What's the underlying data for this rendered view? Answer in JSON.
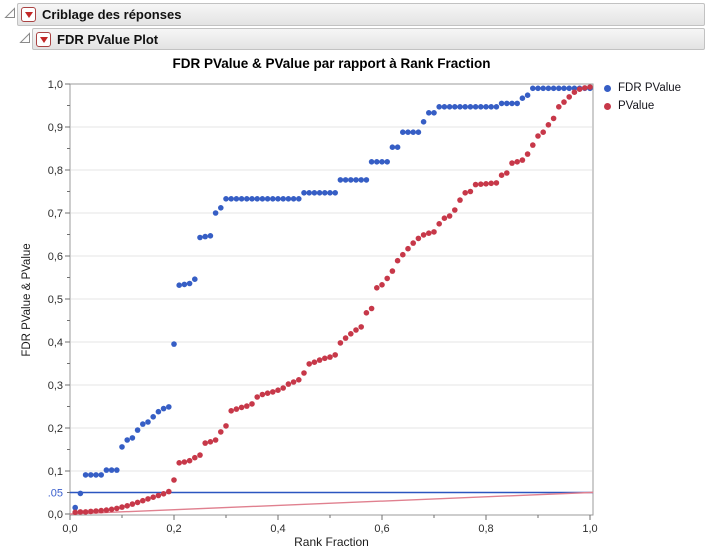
{
  "outline": {
    "level1_title": "Criblage des réponses",
    "level2_title": "FDR PValue Plot"
  },
  "chart": {
    "title": "FDR PValue & PValue par rapport à Rank Fraction",
    "x_axis": {
      "title": "Rank Fraction",
      "tick_labels": [
        "0,0",
        "0,2",
        "0,4",
        "0,6",
        "0,8",
        "1,0"
      ],
      "tick_values": [
        0,
        0.2,
        0.4,
        0.6,
        0.8,
        1.0
      ],
      "minor_tick_values": [
        0.1,
        0.3,
        0.5,
        0.7,
        0.9
      ]
    },
    "y_axis": {
      "title": "FDR PValue & PValue",
      "tick_labels": [
        "0,0",
        "0,1",
        "0,2",
        "0,3",
        "0,4",
        "0,5",
        "0,6",
        "0,7",
        "0,8",
        "0,9",
        "1,0"
      ],
      "tick_values": [
        0,
        0.1,
        0.2,
        0.3,
        0.4,
        0.5,
        0.6,
        0.7,
        0.8,
        0.9,
        1.0
      ],
      "minor_tick_values": [
        0.05,
        0.15,
        0.25,
        0.35,
        0.45,
        0.55,
        0.65,
        0.75,
        0.85,
        0.95
      ],
      "special_tick": {
        "label": ".05",
        "value": 0.05,
        "color": "#3a5fcd"
      }
    },
    "legend": [
      {
        "label": "FDR PValue",
        "color": "#365ec5"
      },
      {
        "label": "PValue",
        "color": "#c73849"
      }
    ]
  },
  "chart_data": {
    "type": "scatter",
    "title": "FDR PValue & PValue par rapport à Rank Fraction",
    "xlabel": "Rank Fraction",
    "ylabel": "FDR PValue & PValue",
    "xlim": [
      0,
      1.006
    ],
    "ylim": [
      0,
      1.0
    ],
    "grid": "horizontal-only",
    "legend_position": "right-top",
    "x": [
      0.01,
      0.02,
      0.03,
      0.04,
      0.05,
      0.06,
      0.07,
      0.08,
      0.09,
      0.1,
      0.11,
      0.12,
      0.13,
      0.14,
      0.15,
      0.16,
      0.17,
      0.18,
      0.19,
      0.2,
      0.21,
      0.22,
      0.23,
      0.24,
      0.25,
      0.26,
      0.27,
      0.28,
      0.29,
      0.3,
      0.31,
      0.32,
      0.33,
      0.34,
      0.35,
      0.36,
      0.37,
      0.38,
      0.39,
      0.4,
      0.41,
      0.42,
      0.43,
      0.44,
      0.45,
      0.46,
      0.47,
      0.48,
      0.49,
      0.5,
      0.51,
      0.52,
      0.53,
      0.54,
      0.55,
      0.56,
      0.57,
      0.58,
      0.59,
      0.6,
      0.61,
      0.62,
      0.63,
      0.64,
      0.65,
      0.66,
      0.67,
      0.68,
      0.69,
      0.7,
      0.71,
      0.72,
      0.73,
      0.74,
      0.75,
      0.76,
      0.77,
      0.78,
      0.79,
      0.8,
      0.81,
      0.82,
      0.83,
      0.84,
      0.85,
      0.86,
      0.87,
      0.88,
      0.89,
      0.9,
      0.91,
      0.92,
      0.93,
      0.94,
      0.95,
      0.96,
      0.97,
      0.98,
      0.99,
      1.0
    ],
    "series": [
      {
        "name": "FDR PValue",
        "color": "#365ec5",
        "values": [
          0.015,
          0.048,
          0.091,
          0.091,
          0.091,
          0.091,
          0.102,
          0.102,
          0.102,
          0.156,
          0.172,
          0.177,
          0.195,
          0.209,
          0.214,
          0.226,
          0.238,
          0.245,
          0.249,
          0.395,
          0.532,
          0.534,
          0.536,
          0.546,
          0.643,
          0.645,
          0.647,
          0.7,
          0.712,
          0.733,
          0.733,
          0.733,
          0.733,
          0.733,
          0.733,
          0.733,
          0.733,
          0.733,
          0.733,
          0.733,
          0.733,
          0.733,
          0.733,
          0.733,
          0.747,
          0.747,
          0.747,
          0.747,
          0.747,
          0.747,
          0.747,
          0.777,
          0.777,
          0.777,
          0.777,
          0.777,
          0.777,
          0.819,
          0.819,
          0.819,
          0.819,
          0.853,
          0.853,
          0.888,
          0.888,
          0.888,
          0.888,
          0.912,
          0.933,
          0.933,
          0.947,
          0.947,
          0.947,
          0.947,
          0.947,
          0.947,
          0.947,
          0.947,
          0.947,
          0.947,
          0.947,
          0.947,
          0.955,
          0.955,
          0.955,
          0.955,
          0.967,
          0.974,
          0.99,
          0.99,
          0.99,
          0.99,
          0.99,
          0.99,
          0.99,
          0.99,
          0.99,
          0.99,
          0.99,
          0.99
        ]
      },
      {
        "name": "PValue",
        "color": "#c73849",
        "values": [
          0.004,
          0.005,
          0.005,
          0.006,
          0.007,
          0.008,
          0.009,
          0.011,
          0.013,
          0.016,
          0.019,
          0.023,
          0.027,
          0.031,
          0.035,
          0.039,
          0.043,
          0.047,
          0.052,
          0.079,
          0.119,
          0.121,
          0.124,
          0.131,
          0.137,
          0.165,
          0.168,
          0.172,
          0.191,
          0.205,
          0.24,
          0.244,
          0.248,
          0.251,
          0.256,
          0.272,
          0.278,
          0.281,
          0.284,
          0.288,
          0.293,
          0.302,
          0.307,
          0.312,
          0.328,
          0.349,
          0.353,
          0.358,
          0.362,
          0.365,
          0.37,
          0.398,
          0.409,
          0.419,
          0.428,
          0.435,
          0.468,
          0.478,
          0.526,
          0.533,
          0.548,
          0.565,
          0.589,
          0.603,
          0.617,
          0.63,
          0.641,
          0.649,
          0.653,
          0.656,
          0.675,
          0.688,
          0.693,
          0.707,
          0.73,
          0.747,
          0.75,
          0.766,
          0.767,
          0.768,
          0.769,
          0.77,
          0.788,
          0.793,
          0.816,
          0.819,
          0.823,
          0.837,
          0.858,
          0.879,
          0.888,
          0.905,
          0.92,
          0.947,
          0.958,
          0.97,
          0.981,
          0.988,
          0.991,
          0.993
        ]
      }
    ],
    "reference_lines": [
      {
        "type": "horizontal",
        "y": 0.05,
        "color": "#2b56c0",
        "meaning": "0.05 threshold"
      },
      {
        "type": "segment",
        "x1": 0,
        "y1": 0,
        "x2": 1.006,
        "y2": 0.0503,
        "color": "#e0808f",
        "meaning": "significance ramp"
      }
    ]
  },
  "colors": {
    "grid_line": "#e4e4e4",
    "plot_border": "#9b9b9b",
    "tick_mark": "#6f6f6f",
    "tick_label": "#2e2e2e",
    "header_border": "#c2c2c2"
  }
}
